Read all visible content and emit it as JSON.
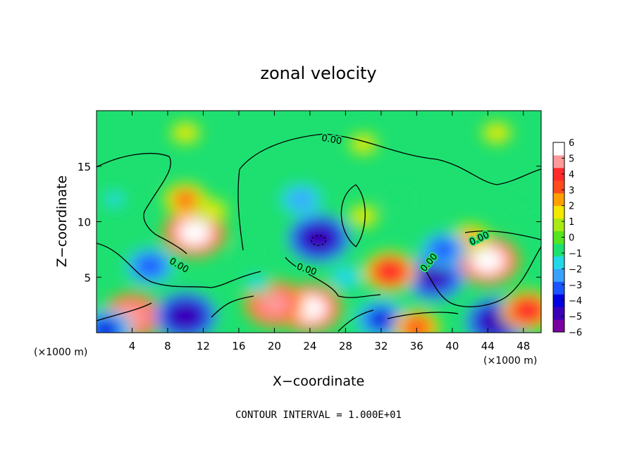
{
  "chart_data": {
    "type": "heatmap",
    "title": "zonal velocity",
    "xlabel": "X−coordinate",
    "ylabel": "Z−coordinate",
    "x_unit_label": "(×1000 m)",
    "y_unit_label": "(×1000 m)",
    "xlim": [
      0,
      50
    ],
    "ylim": [
      0,
      20
    ],
    "x_ticks": [
      "4",
      "8",
      "12",
      "16",
      "20",
      "24",
      "28",
      "32",
      "36",
      "40",
      "44",
      "48"
    ],
    "y_ticks": [
      "5",
      "10",
      "15"
    ],
    "colorbar": {
      "min": -6,
      "max": 6,
      "ticks": [
        "6",
        "5",
        "4",
        "3",
        "2",
        "1",
        "0",
        "−1",
        "−2",
        "−3",
        "−4",
        "−5",
        "−6"
      ],
      "colors": [
        "#7a00a0",
        "#3a00b8",
        "#0000e0",
        "#1a55ff",
        "#3aa0ff",
        "#25d8e8",
        "#1ee070",
        "#55e41e",
        "#a8ea14",
        "#f2e800",
        "#ffa000",
        "#ff4b1e",
        "#ff2a2a",
        "#ff9a9a",
        "#ffffff"
      ]
    },
    "contour_label": "0.00",
    "contour_interval_text": "CONTOUR INTERVAL = 1.000E+01",
    "features": [
      {
        "x": 11,
        "z": 9,
        "value": 6.5
      },
      {
        "x": 10,
        "z": 12,
        "value": 3.5
      },
      {
        "x": 13,
        "z": 11,
        "value": 2.0
      },
      {
        "x": 25,
        "z": 8.5,
        "value": -6.5
      },
      {
        "x": 23,
        "z": 12,
        "value": -3.5
      },
      {
        "x": 30,
        "z": 10.5,
        "value": 1.8
      },
      {
        "x": 44,
        "z": 6.5,
        "value": 6.5
      },
      {
        "x": 42,
        "z": 8.5,
        "value": 3.0
      },
      {
        "x": 38,
        "z": 5,
        "value": -6.0
      },
      {
        "x": 39,
        "z": 7.5,
        "value": -4.0
      },
      {
        "x": 6,
        "z": 6,
        "value": -4.5
      },
      {
        "x": 4,
        "z": 1.5,
        "value": 6.0
      },
      {
        "x": 1,
        "z": 0.3,
        "value": -5.0
      },
      {
        "x": 10,
        "z": 1.5,
        "value": -6.5
      },
      {
        "x": 24,
        "z": 2.2,
        "value": 6.5
      },
      {
        "x": 20,
        "z": 2.6,
        "value": 6.0
      },
      {
        "x": 18,
        "z": 4.5,
        "value": -2.0
      },
      {
        "x": 32,
        "z": 1.2,
        "value": -5.0
      },
      {
        "x": 33,
        "z": 5.5,
        "value": 5.0
      },
      {
        "x": 36,
        "z": 0.5,
        "value": 4.0
      },
      {
        "x": 45,
        "z": 1.0,
        "value": -6.5
      },
      {
        "x": 48.5,
        "z": 2.0,
        "value": 5.0
      },
      {
        "x": 30,
        "z": 17,
        "value": 1.6
      },
      {
        "x": 10,
        "z": 18,
        "value": 1.8
      },
      {
        "x": 45,
        "z": 18,
        "value": 1.8
      },
      {
        "x": 2,
        "z": 12,
        "value": -2.0
      },
      {
        "x": 48,
        "z": 12,
        "value": -1.5
      },
      {
        "x": 34,
        "z": 12,
        "value": -1.5
      },
      {
        "x": 17,
        "z": 7.5,
        "value": -1.5
      },
      {
        "x": 28,
        "z": 5,
        "value": -2.5
      }
    ]
  }
}
